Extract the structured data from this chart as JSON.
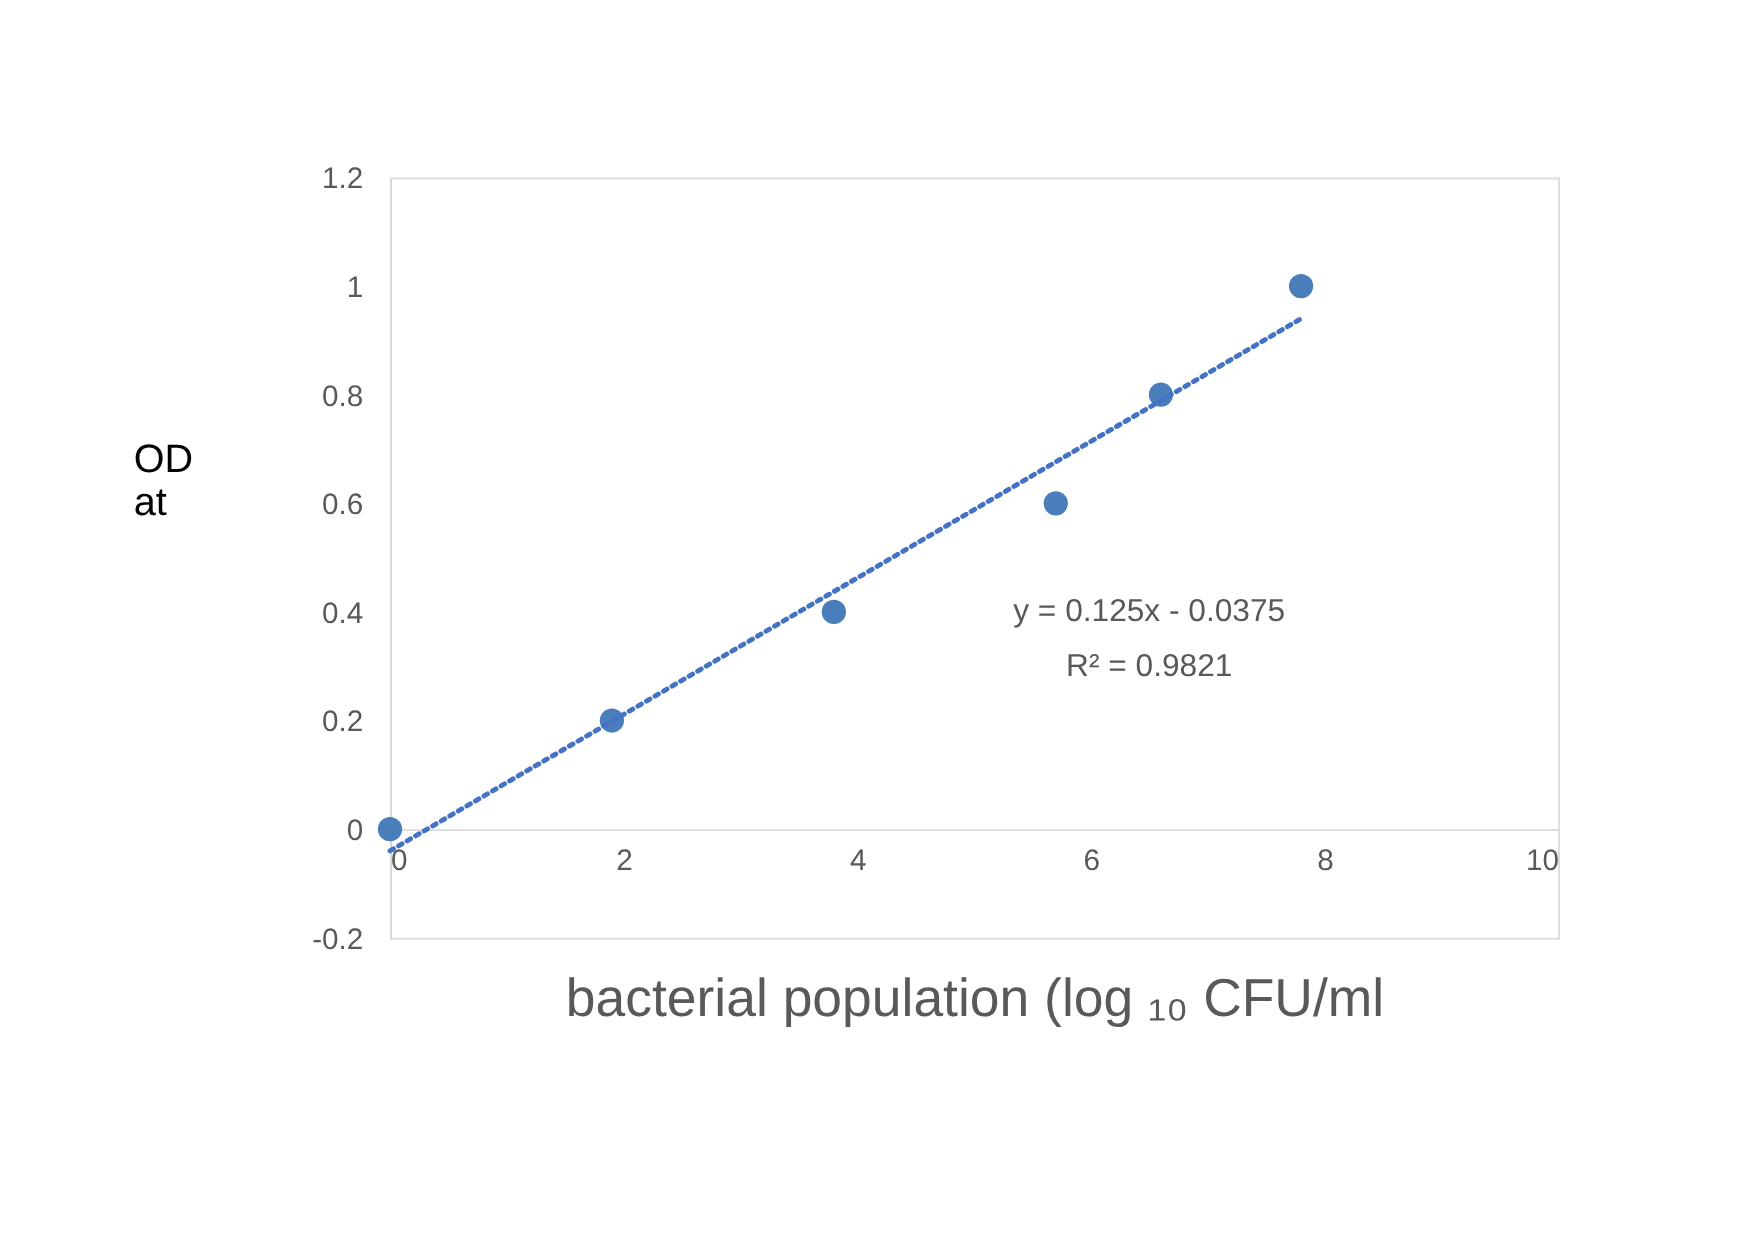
{
  "chart_data": {
    "type": "scatter",
    "xlabel": "bacterial population (log ₁₀ CFU/ml",
    "ylabel": "OD at",
    "xlim": [
      0,
      10
    ],
    "xticks": [
      0,
      2,
      4,
      6,
      8,
      10
    ],
    "ylim": [
      -0.2,
      1.2
    ],
    "yticks": [
      -0.2,
      0,
      0.2,
      0.4,
      0.6,
      0.8,
      1,
      1.2
    ],
    "grid": false,
    "marker": "circle",
    "annotations": [
      "y = 0.125x - 0.0375",
      "R² = 0.9821"
    ],
    "series": [
      {
        "color": "#4a7ebb",
        "x": [
          0,
          1.9,
          3.8,
          5.7,
          6.6,
          7.8
        ],
        "values": [
          0,
          0.2,
          0.4,
          0.6,
          0.8,
          1.0
        ]
      },
      {
        "type": "line",
        "color": "#4472c4",
        "line_style": "dotted",
        "marker": "none",
        "x": [
          0,
          7.8
        ],
        "values": [
          -0.04,
          0.94
        ]
      }
    ]
  }
}
